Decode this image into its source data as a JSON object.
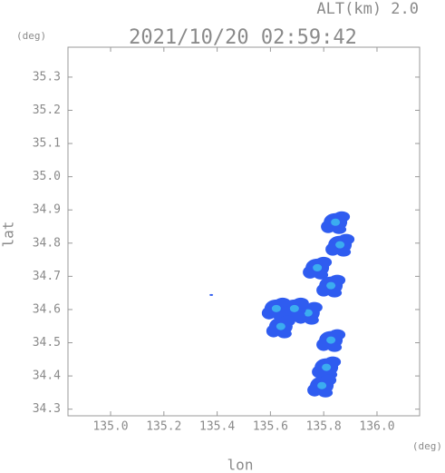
{
  "chart_data": {
    "type": "scatter",
    "title": "2021/10/20 02:59:42",
    "altitude_label": "ALT(km) 2.0",
    "x_label": "lon",
    "y_label": "lat",
    "x_unit": "(deg)",
    "y_unit": "(deg)",
    "color": "#2f5cf0",
    "core_color": "#3ec0f0",
    "x": [
      135.844,
      135.861,
      135.776,
      135.827,
      135.622,
      135.741,
      135.69,
      135.827,
      135.81,
      135.793,
      135.639,
      135.378
    ],
    "values": [
      34.863,
      34.795,
      34.726,
      34.672,
      34.603,
      34.59,
      34.603,
      34.508,
      34.426,
      34.371,
      34.549,
      34.644
    ],
    "xlim": [
      134.84,
      136.16
    ],
    "ylim": [
      34.28,
      35.39
    ],
    "xticks": [
      {
        "value": 135.0,
        "label": "135.0"
      },
      135.2,
      135.4,
      135.6,
      135.8,
      {
        "value": 136.0,
        "label": "136.0"
      }
    ],
    "yticks": [
      34.3,
      34.4,
      34.5,
      34.6,
      34.7,
      34.8,
      34.9,
      {
        "value": 35.0,
        "label": "35.0"
      },
      35.1,
      35.2,
      35.3
    ]
  }
}
